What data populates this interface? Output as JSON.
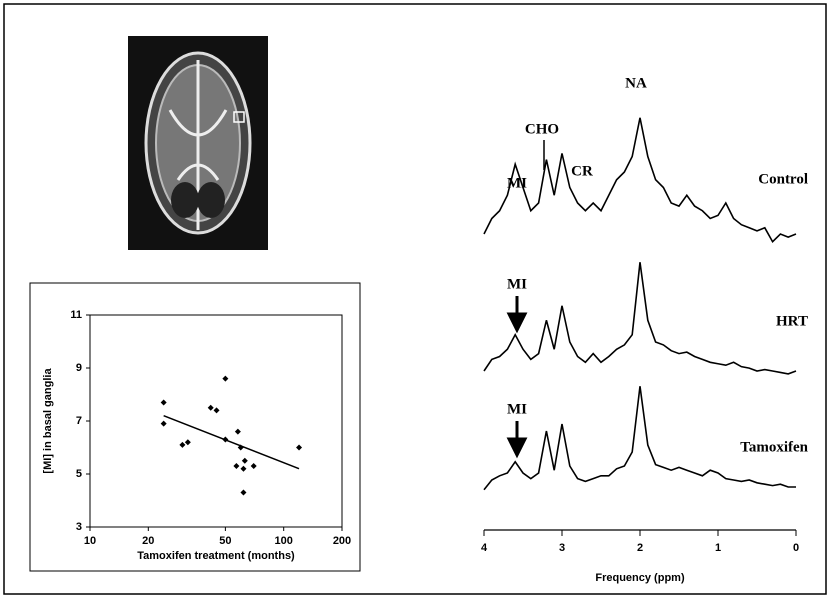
{
  "chart_data": [
    {
      "type": "scatter",
      "xlabel": "Tamoxifen treatment (months)",
      "ylabel": "[MI] in basal ganglia",
      "xscale": "log",
      "xlim": [
        10,
        200
      ],
      "xticks": [
        10,
        20,
        50,
        100,
        200
      ],
      "ylim": [
        3,
        11
      ],
      "yticks": [
        3,
        5,
        7,
        9,
        11
      ],
      "color": "#000000",
      "x": [
        24,
        24,
        30,
        32,
        42,
        45,
        50,
        50,
        57,
        58,
        60,
        62,
        62,
        63,
        70,
        120
      ],
      "values": [
        7.7,
        6.9,
        6.1,
        6.2,
        7.5,
        7.4,
        8.6,
        6.3,
        5.3,
        6.6,
        6.0,
        4.3,
        5.2,
        5.5,
        5.3,
        6.0
      ],
      "trendline": {
        "x": [
          24,
          120
        ],
        "values": [
          7.2,
          5.2
        ]
      }
    },
    {
      "type": "line",
      "xlabel": "Frequency (ppm)",
      "xlim": [
        4,
        0
      ],
      "xticks": [
        4,
        3,
        2,
        1,
        0
      ],
      "ylim": [
        0,
        10
      ],
      "annotations": [
        "MI",
        "CHO",
        "CR",
        "NA",
        "MI",
        "MI"
      ],
      "x": [
        4.0,
        3.9,
        3.8,
        3.7,
        3.6,
        3.5,
        3.4,
        3.3,
        3.2,
        3.1,
        3.0,
        2.9,
        2.8,
        2.7,
        2.6,
        2.5,
        2.4,
        2.3,
        2.2,
        2.1,
        2.0,
        1.9,
        1.8,
        1.7,
        1.6,
        1.5,
        1.4,
        1.3,
        1.2,
        1.1,
        1.0,
        0.9,
        0.8,
        0.7,
        0.6,
        0.5,
        0.4,
        0.3,
        0.2,
        0.1,
        0.0
      ],
      "series": [
        {
          "name": "Control",
          "color": "#000000",
          "values": [
            2,
            3,
            3.5,
            4.5,
            6.5,
            5,
            3.5,
            4,
            6.8,
            4.5,
            7.2,
            5,
            4,
            3.5,
            4,
            3.5,
            4.5,
            5.5,
            6,
            7,
            9.5,
            7,
            5.5,
            5,
            4,
            3.8,
            4.5,
            3.8,
            3.5,
            3,
            3.2,
            4,
            3,
            2.6,
            2.4,
            2.2,
            2.4,
            1.5,
            2,
            1.8,
            2
          ]
        },
        {
          "name": "HRT",
          "color": "#000000",
          "values": [
            2,
            2.8,
            3,
            3.5,
            4.5,
            3.5,
            2.8,
            3.2,
            5.5,
            3.5,
            6.5,
            4,
            3,
            2.6,
            3.2,
            2.6,
            3,
            3.5,
            3.8,
            4.5,
            9.5,
            5.5,
            4,
            3.8,
            3.4,
            3.2,
            3.3,
            3,
            2.8,
            2.6,
            2.5,
            2.4,
            2.6,
            2.3,
            2.2,
            2,
            2.1,
            2,
            1.9,
            1.8,
            2
          ]
        },
        {
          "name": "Tamoxifen",
          "color": "#000000",
          "values": [
            1.8,
            2.5,
            2.8,
            3,
            3.8,
            3,
            2.6,
            3,
            6,
            3.2,
            6.5,
            3.5,
            2.6,
            2.4,
            2.6,
            2.8,
            2.8,
            3.3,
            3.5,
            4.5,
            9.2,
            5,
            3.6,
            3.4,
            3.2,
            3.4,
            3.2,
            3,
            2.8,
            3.2,
            3,
            2.6,
            2.5,
            2.4,
            2.5,
            2.3,
            2.2,
            2.1,
            2.2,
            2,
            2
          ]
        }
      ]
    }
  ]
}
